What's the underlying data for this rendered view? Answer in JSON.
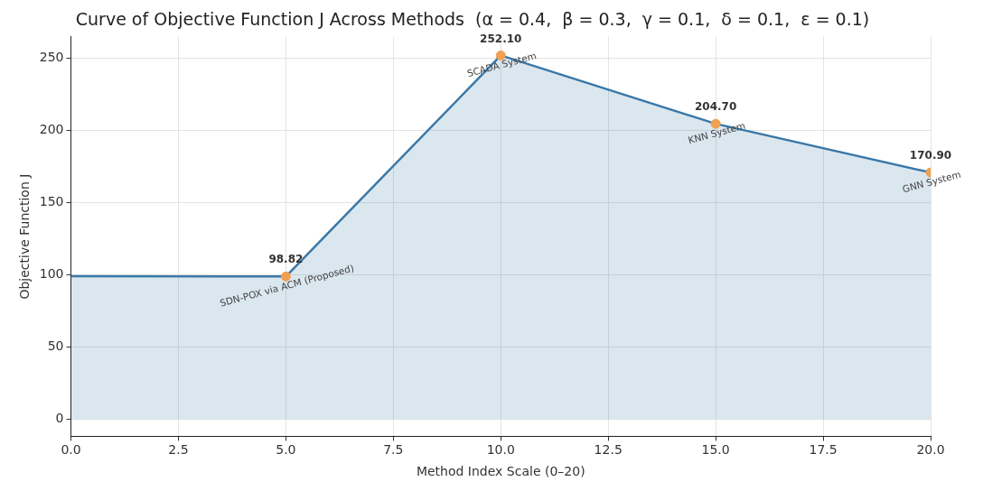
{
  "chart_data": {
    "type": "area",
    "title": "Curve of Objective Function J Across Methods  (α = 0.4,  β = 0.3,  γ = 0.1,  δ = 0.1,  ε = 0.1)",
    "xlabel": "Method Index Scale (0–20)",
    "ylabel": "Objective Function J",
    "xlim": [
      0,
      20
    ],
    "xticks": [
      {
        "value": 0,
        "label": "0.0"
      },
      {
        "value": 2.5,
        "label": "2.5"
      },
      {
        "value": 5,
        "label": "5.0"
      },
      {
        "value": 7.5,
        "label": "7.5"
      },
      {
        "value": 10,
        "label": "10.0"
      },
      {
        "value": 12.5,
        "label": "12.5"
      },
      {
        "value": 15,
        "label": "15.0"
      },
      {
        "value": 17.5,
        "label": "17.5"
      },
      {
        "value": 20,
        "label": "20.0"
      }
    ],
    "ylim": [
      -12,
      265
    ],
    "yticks": [
      0,
      50,
      100,
      150,
      200,
      250
    ],
    "grid": true,
    "series": [
      {
        "color": "#3a78a8",
        "x": [
          0,
          5,
          10,
          15,
          20
        ],
        "values": [
          99,
          98.82,
          252.1,
          204.7,
          170.9
        ],
        "marker": "none"
      },
      {
        "type": "scatter",
        "color": "#f0a050",
        "x": [
          5,
          10,
          15,
          20
        ],
        "values": [
          98.82,
          252.1,
          204.7,
          170.9
        ],
        "marker": "circle",
        "value_labels": [
          "98.82",
          "252.10",
          "204.70",
          "170.90"
        ]
      }
    ],
    "annotations": [
      {
        "text": "SDN-POX via ACM (Proposed)",
        "x": 5,
        "y": 98.82
      },
      {
        "text": "SCADA System",
        "x": 10,
        "y": 252.1
      },
      {
        "text": "KNN System",
        "x": 15,
        "y": 204.7
      },
      {
        "text": "GNN System",
        "x": 20,
        "y": 170.9
      }
    ]
  }
}
